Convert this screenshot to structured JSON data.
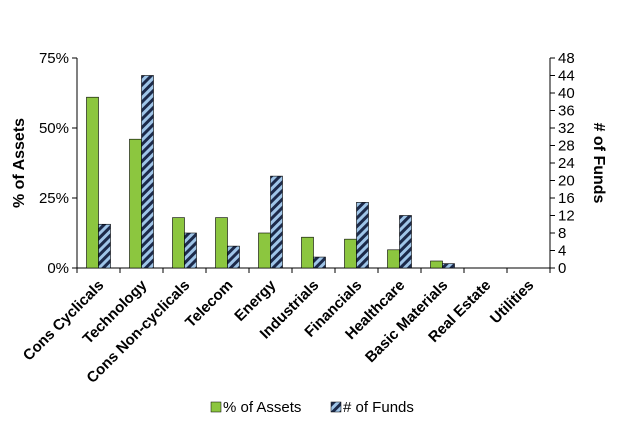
{
  "chart_data": {
    "type": "bar",
    "categories": [
      "Cons Cyclicals",
      "Technology",
      "Cons Non-cyclicals",
      "Telecom",
      "Energy",
      "Industrials",
      "Financials",
      "Healthcare",
      "Basic Materials",
      "Real Estate",
      "Utilities"
    ],
    "series": [
      {
        "name": "% of Assets",
        "axis": "left",
        "color": "#8cc63f",
        "values": [
          61,
          46,
          18,
          18,
          12.5,
          11,
          10.3,
          6.5,
          2.5,
          0,
          0
        ]
      },
      {
        "name": "# of Funds",
        "axis": "right",
        "color": "#1c2a4a",
        "pattern": "diagonal-stripes-light-blue",
        "values": [
          10,
          44,
          8,
          5,
          21,
          2.5,
          15,
          12,
          1,
          0,
          0
        ]
      }
    ],
    "left_axis": {
      "label": "% of Assets",
      "ylim": [
        0,
        75
      ],
      "ticks": [
        0,
        25,
        50,
        75
      ],
      "tick_labels": [
        "0%",
        "25%",
        "50%",
        "75%"
      ]
    },
    "right_axis": {
      "label": "# of Funds",
      "ylim": [
        0,
        48
      ],
      "ticks": [
        0,
        4,
        8,
        12,
        16,
        20,
        24,
        28,
        32,
        36,
        40,
        44,
        48
      ],
      "tick_labels": [
        "0",
        "4",
        "8",
        "12",
        "16",
        "20",
        "24",
        "28",
        "32",
        "36",
        "40",
        "44",
        "48"
      ]
    },
    "grid": false,
    "legend_position": "bottom"
  }
}
